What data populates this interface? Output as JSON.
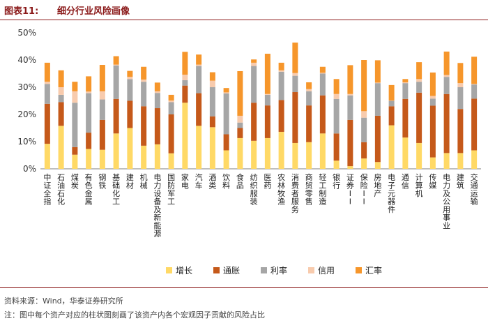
{
  "figure": {
    "label": "图表11:",
    "title": "细分行业风险画像",
    "source": "资料来源：Wind，华泰证券研究所",
    "note": "注：图中每个资产对应的柱状图刻画了该资产内各个宏观因子贡献的风险占比"
  },
  "chart_data": {
    "type": "stacked-bar",
    "title": "细分行业风险画像",
    "ylim": [
      0,
      50
    ],
    "yticks": [
      "0%",
      "10%",
      "20%",
      "30%",
      "40%",
      "50%"
    ],
    "legend_position": "bottom",
    "categories": [
      "中证全指",
      "石油石化",
      "煤炭",
      "有色金属",
      "钢铁",
      "基础化工",
      "建材",
      "机械",
      "电力设备及新能源",
      "国防军工",
      "家电",
      "汽车",
      "酒类",
      "饮料",
      "食品",
      "纺织服装",
      "医药",
      "农林牧渔",
      "消费者服务",
      "商贸零售",
      "轻工制造",
      "银行",
      "证券II",
      "保险II",
      "房地产",
      "电子元器件",
      "通信",
      "计算机",
      "传媒",
      "电力及公用事业",
      "建筑",
      "交通运输"
    ],
    "series": [
      {
        "name": "增长",
        "color": "#ffd966",
        "values": [
          9.2,
          15.8,
          5.2,
          7.3,
          7.0,
          13.0,
          15.0,
          8.5,
          9.0,
          5.7,
          24.3,
          15.8,
          15.3,
          6.8,
          11.3,
          10.3,
          11.3,
          13.6,
          9.5,
          9.8,
          13.0,
          3.0,
          1.0,
          3.8,
          2.5,
          16.0,
          11.5,
          9.5,
          4.2,
          5.8,
          5.8,
          6.8
        ]
      },
      {
        "name": "通胀",
        "color": "#c5591a",
        "values": [
          14.7,
          8.7,
          2.8,
          6.0,
          11.0,
          12.7,
          10.0,
          14.5,
          13.3,
          14.3,
          6.3,
          12.0,
          4.0,
          5.9,
          3.7,
          14.0,
          12.0,
          11.7,
          18.7,
          13.5,
          14.0,
          10.0,
          17.0,
          6.0,
          17.0,
          7.0,
          14.2,
          18.5,
          19.0,
          21.7,
          16.2,
          19.0
        ]
      },
      {
        "name": "利率",
        "color": "#a6a6a6",
        "values": [
          7.3,
          2.7,
          16.3,
          14.5,
          7.5,
          12.3,
          8.0,
          9.0,
          5.6,
          4.5,
          2.0,
          10.0,
          10.7,
          15.0,
          2.0,
          13.5,
          3.9,
          10.4,
          6.0,
          5.2,
          8.0,
          12.7,
          9.0,
          9.0,
          12.0,
          2.0,
          5.8,
          4.0,
          2.6,
          6.3,
          8.0,
          5.2
        ]
      },
      {
        "name": "信用",
        "color": "#f8cbad",
        "values": [
          0.8,
          2.8,
          4.2,
          0.6,
          3.0,
          0.3,
          0.8,
          0.8,
          0.6,
          0.6,
          2.0,
          0.5,
          2.4,
          0.4,
          2.5,
          1.2,
          0.3,
          0.5,
          1.0,
          0.8,
          0.3,
          1.8,
          0.5,
          2.4,
          0.2,
          0.1,
          0.3,
          1.0,
          1.0,
          0.7,
          1.5,
          0.2
        ]
      },
      {
        "name": "汇率",
        "color": "#f6962b",
        "values": [
          7.0,
          6.2,
          3.5,
          5.6,
          9.7,
          3.1,
          2.2,
          4.7,
          3.2,
          2.1,
          8.4,
          3.7,
          3.1,
          1.6,
          16.4,
          1.2,
          14.8,
          2.8,
          11.2,
          2.5,
          2.2,
          5.5,
          10.6,
          18.8,
          8.2,
          5.7,
          1.2,
          6.2,
          8.6,
          8.6,
          7.4,
          10.0
        ]
      }
    ]
  }
}
